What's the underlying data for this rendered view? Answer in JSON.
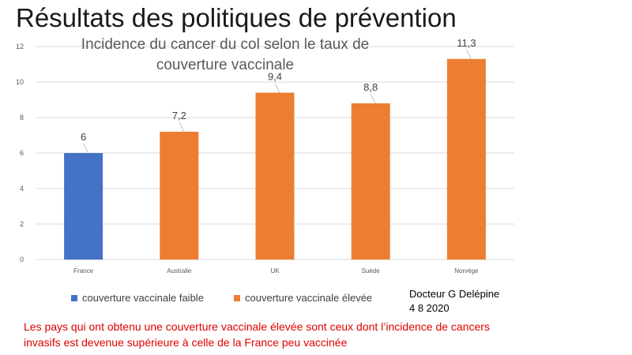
{
  "slide": {
    "title": "Résultats des politiques de prévention",
    "author_line1": "Docteur G Delépine",
    "author_line2": "4 8 2020",
    "note": "Les pays qui ont obtenu une couverture vaccinale élevée sont ceux dont l’incidence de cancers invasifs est devenue supérieure à celle de la France peu vaccinée"
  },
  "chart_data": {
    "type": "bar",
    "title": "Incidence du cancer du col selon le taux de couverture vaccinale",
    "categories": [
      "France",
      "Australie",
      "UK",
      "Suède",
      "Norvège"
    ],
    "values": [
      6,
      7.2,
      9.4,
      8.8,
      11.3
    ],
    "data_labels": [
      "6",
      "7,2",
      "9,4",
      "8,8",
      "11,3"
    ],
    "groups": [
      "faible",
      "élevée",
      "élevée",
      "élevée",
      "élevée"
    ],
    "legend": [
      {
        "key": "faible",
        "label": "couverture vaccinale faible",
        "color": "#4472c4"
      },
      {
        "key": "élevée",
        "label": "couverture vaccinale élevée",
        "color": "#ed7d31"
      }
    ],
    "yticks": [
      0,
      2,
      4,
      6,
      8,
      10,
      12
    ],
    "ylim": [
      0,
      12
    ],
    "grid": true,
    "legend_position": "bottom"
  }
}
